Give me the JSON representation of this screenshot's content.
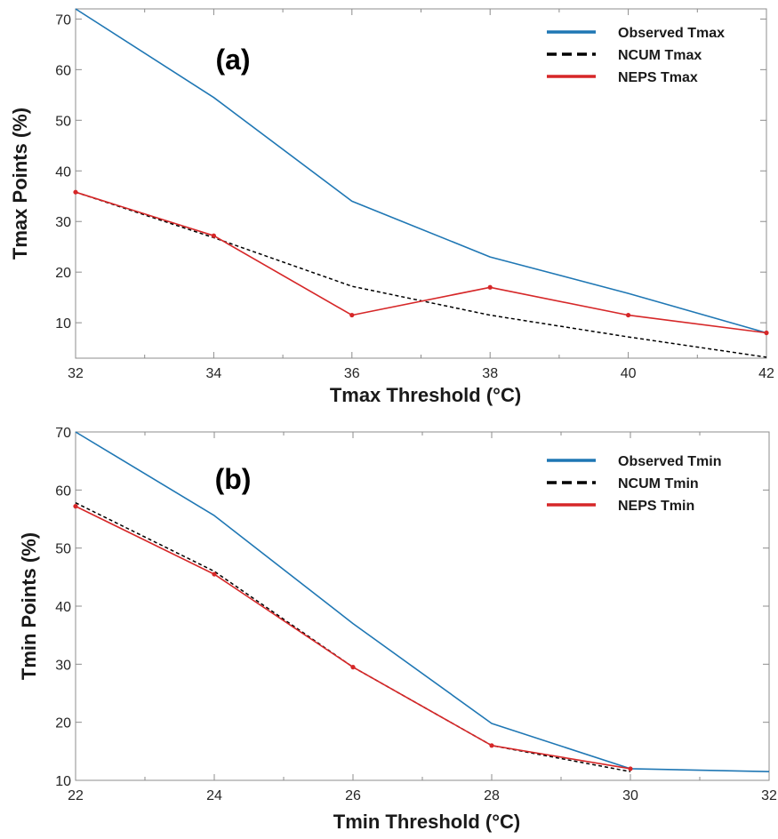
{
  "chart_data": [
    {
      "type": "line",
      "panel_label": "(a)",
      "xlabel": "Tmax Threshold (°C)",
      "ylabel": "Tmax Points (%)",
      "xlim": [
        32,
        42
      ],
      "ylim": [
        3,
        72
      ],
      "xticks": [
        32,
        34,
        36,
        38,
        40,
        42
      ],
      "yticks": [
        10,
        20,
        30,
        40,
        50,
        60,
        70
      ],
      "grid": false,
      "legend": "top-right",
      "x": [
        32,
        34,
        36,
        38,
        40,
        42
      ],
      "series": [
        {
          "name": "Observed Tmax",
          "color": "#1f77b4",
          "style": "solid",
          "markers": false,
          "values": [
            72,
            54.5,
            34,
            23,
            15.8,
            8
          ]
        },
        {
          "name": "NCUM Tmax",
          "color": "#000000",
          "style": "dashed",
          "markers": false,
          "values": [
            35.8,
            26.8,
            17.2,
            11.5,
            7.2,
            3.2
          ]
        },
        {
          "name": "NEPS Tmax",
          "color": "#d62728",
          "style": "solid",
          "markers": true,
          "values": [
            35.8,
            27.2,
            11.5,
            17,
            11.5,
            8
          ]
        }
      ]
    },
    {
      "type": "line",
      "panel_label": "(b)",
      "xlabel": "Tmin Threshold (°C)",
      "ylabel": "Tmin Points (%)",
      "xlim": [
        22,
        32
      ],
      "ylim": [
        10,
        70
      ],
      "xticks": [
        22,
        24,
        26,
        28,
        30,
        32
      ],
      "yticks": [
        10,
        20,
        30,
        40,
        50,
        60,
        70
      ],
      "grid": false,
      "legend": "top-right",
      "x": [
        22,
        24,
        26,
        28,
        30,
        32
      ],
      "series": [
        {
          "name": "Observed Tmin",
          "color": "#1f77b4",
          "style": "solid",
          "markers": false,
          "values": [
            70,
            55.6,
            37,
            19.8,
            12,
            11.5
          ]
        },
        {
          "name": "NCUM Tmin",
          "color": "#000000",
          "style": "dashed",
          "markers": false,
          "values": [
            57.8,
            46,
            29.5,
            16,
            11.5,
            null
          ]
        },
        {
          "name": "NEPS Tmin",
          "color": "#d62728",
          "style": "solid",
          "markers": true,
          "values": [
            57.2,
            45.5,
            29.5,
            16,
            12,
            null
          ]
        }
      ]
    }
  ]
}
